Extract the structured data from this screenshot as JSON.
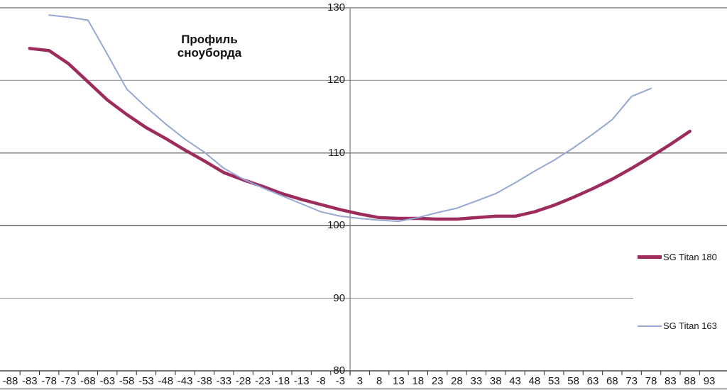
{
  "chart_data": {
    "type": "line",
    "title": "Профиль сноуборда",
    "title_lines": [
      "Профиль",
      "сноуборда"
    ],
    "categories": [
      "-88",
      "-83",
      "-78",
      "-73",
      "-68",
      "-63",
      "-58",
      "-53",
      "-48",
      "-43",
      "-38",
      "-33",
      "-28",
      "-23",
      "-18",
      "-13",
      "-8",
      "-3",
      "3",
      "8",
      "13",
      "18",
      "23",
      "28",
      "33",
      "38",
      "43",
      "48",
      "53",
      "58",
      "63",
      "68",
      "73",
      "78",
      "83",
      "88",
      "93"
    ],
    "y_axis": {
      "min": 80,
      "max": 130,
      "step": 10,
      "ticks": [
        {
          "label": "130",
          "color": "#6b6b6b"
        },
        {
          "label": "120",
          "color": "#9e9e9e"
        },
        {
          "label": "110",
          "color": "#555555"
        },
        {
          "label": "100",
          "color": "#2b2b2b"
        },
        {
          "label": "90",
          "color": "#9e9e9e"
        },
        {
          "label": "80",
          "color": "#2b2b2b"
        }
      ]
    },
    "series": [
      {
        "name": "SG Titan 180",
        "color": "#9D2C5D",
        "width": 4.5,
        "values": [
          null,
          124.4,
          124.1,
          122.3,
          119.8,
          117.3,
          115.3,
          113.5,
          112,
          110.4,
          108.9,
          107.3,
          106.3,
          105.4,
          104.4,
          103.6,
          102.9,
          102.2,
          101.6,
          101.1,
          101,
          101,
          100.9,
          100.9,
          101.1,
          101.3,
          101.3,
          101.9,
          102.8,
          103.9,
          105.1,
          106.4,
          107.9,
          109.5,
          111.2,
          113,
          null
        ]
      },
      {
        "name": "SG Titan 163",
        "color": "#96A7D3",
        "width": 2,
        "values": [
          null,
          null,
          129,
          128.7,
          128.3,
          123.6,
          118.8,
          116.3,
          114,
          111.9,
          110.1,
          107.9,
          106.4,
          105.2,
          104.1,
          103,
          101.9,
          101.3,
          101,
          100.75,
          100.6,
          101.1,
          101.8,
          102.4,
          103.4,
          104.4,
          105.9,
          107.5,
          109,
          110.7,
          112.6,
          114.6,
          117.8,
          118.9,
          null,
          null,
          null
        ]
      }
    ],
    "legend_position": "right-middle",
    "grid": "horizontal"
  },
  "colors": {
    "background": "#ffffff",
    "value_axis_line": "#7a7a7a",
    "category_tick": "#333333",
    "bottom_border": "#555555",
    "text": "#1a1a1a"
  }
}
